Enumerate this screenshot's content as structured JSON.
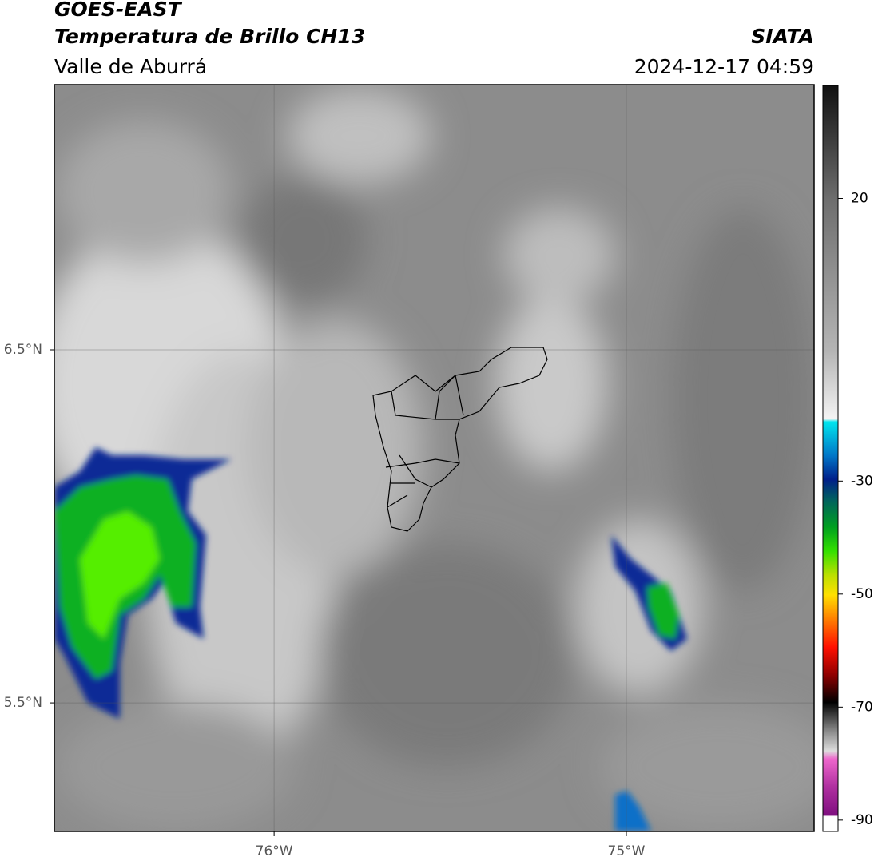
{
  "header": {
    "title": "GOES-EAST",
    "subtitle": "Temperatura de Brillo CH13",
    "region": "Valle de Aburrá",
    "source": "SIATA",
    "datetime": "2024-12-17 04:59"
  },
  "map": {
    "xlim": [
      -76.624,
      -74.467
    ],
    "ylim": [
      5.136,
      7.251
    ],
    "xticks": [
      {
        "value": -76,
        "label": "76°W"
      },
      {
        "value": -75,
        "label": "75°W"
      }
    ],
    "yticks": [
      {
        "value": 6.5,
        "label": "6.5°N"
      },
      {
        "value": 5.5,
        "label": "5.5°N"
      }
    ],
    "grid": true
  },
  "colorbar": {
    "lim": [
      -92,
      40
    ],
    "ticks": [
      20,
      -30,
      -50,
      -70,
      -90
    ]
  }
}
